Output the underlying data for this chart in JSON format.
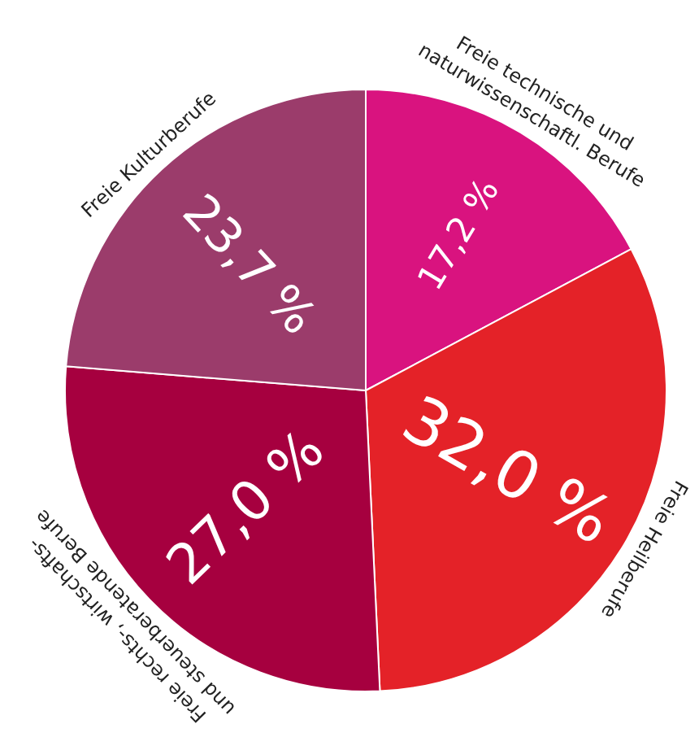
{
  "chart_data": {
    "type": "pie",
    "categories": [
      "Freie technische und\nnaturwissenschaftl. Berufe",
      "Freie Heilberufe",
      "Freie rechts-, wirtschafts-\nund steuerberatende Berufe",
      "Freie Kulturberufe"
    ],
    "values": [
      17.2,
      32.0,
      27.0,
      23.7
    ],
    "value_labels": [
      "17,2 %",
      "32,0 %",
      "27,0 %",
      "23,7 %"
    ],
    "colors": [
      "#d9137f",
      "#e42228",
      "#a6003f",
      "#9b3c6b"
    ],
    "legend": false
  }
}
